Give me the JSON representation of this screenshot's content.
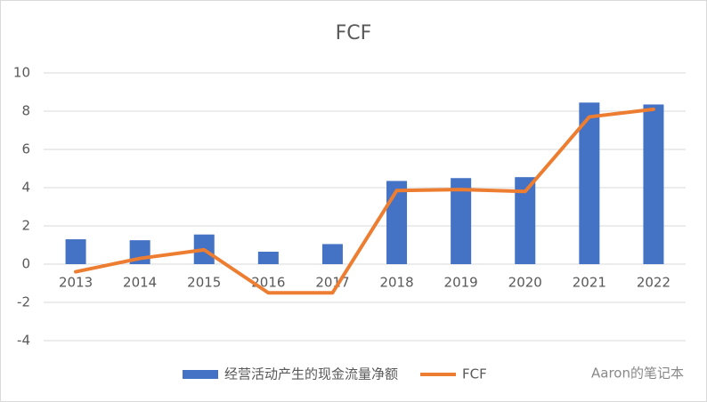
{
  "chart_data": {
    "type": "combo",
    "title": "FCF",
    "categories": [
      "2013",
      "2014",
      "2015",
      "2016",
      "2017",
      "2018",
      "2019",
      "2020",
      "2021",
      "2022"
    ],
    "series": [
      {
        "name": "经营活动产生的现金流量净额",
        "type": "bar",
        "color": "#4472c4",
        "values": [
          1.3,
          1.25,
          1.55,
          0.65,
          1.05,
          4.35,
          4.5,
          4.55,
          8.45,
          8.35
        ]
      },
      {
        "name": "FCF",
        "type": "line",
        "color": "#ed7d31",
        "values": [
          -0.4,
          0.3,
          0.75,
          -1.5,
          -1.5,
          3.85,
          3.9,
          3.8,
          7.7,
          8.1
        ]
      }
    ],
    "ylim": [
      -4,
      10
    ],
    "yticks": [
      -4,
      -2,
      0,
      2,
      4,
      6,
      8,
      10
    ],
    "grid": true,
    "watermark": "Aaron的笔记本"
  }
}
